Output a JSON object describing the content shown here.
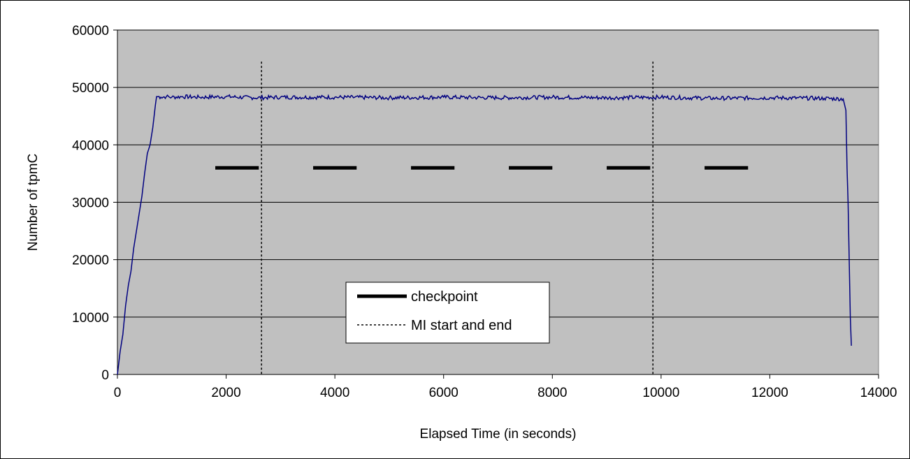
{
  "chart_data": {
    "type": "line",
    "title": "",
    "xlabel": "Elapsed Time (in seconds)",
    "ylabel": "Number of tpmC",
    "xlim": [
      0,
      14000
    ],
    "ylim": [
      0,
      60000
    ],
    "xticks": [
      "0",
      "2000",
      "4000",
      "6000",
      "8000",
      "10000",
      "12000",
      "14000"
    ],
    "yticks": [
      "0",
      "10000",
      "20000",
      "30000",
      "40000",
      "50000",
      "60000"
    ],
    "grid": "horizontal",
    "plot_background": "#c0c0c0",
    "legend_position": "center-left inside plot",
    "series": [
      {
        "name": "",
        "color": "#000080",
        "x": [
          0,
          50,
          100,
          150,
          200,
          250,
          300,
          350,
          400,
          450,
          500,
          550,
          600,
          650,
          700,
          720,
          750,
          800,
          900,
          1000,
          1200,
          1500,
          2000,
          2500,
          3000,
          4000,
          5000,
          6000,
          7000,
          8000,
          9000,
          10000,
          11000,
          12000,
          13000,
          13350,
          13400,
          13420,
          13440,
          13460,
          13480,
          13500
        ],
        "y": [
          0,
          4000,
          7000,
          12000,
          15500,
          18000,
          22000,
          25000,
          28000,
          31000,
          35000,
          38500,
          40000,
          43000,
          47000,
          48400,
          48400,
          48300,
          48400,
          48300,
          48400,
          48300,
          48400,
          48200,
          48300,
          48300,
          48200,
          48300,
          48200,
          48300,
          48200,
          48300,
          48100,
          48200,
          48100,
          48000,
          46000,
          36000,
          30000,
          20000,
          10000,
          5000
        ]
      }
    ],
    "checkpoints": {
      "legend_label": "checkpoint",
      "y": 36000,
      "intervals": [
        [
          1800,
          2600
        ],
        [
          3600,
          4400
        ],
        [
          5400,
          6200
        ],
        [
          7200,
          8000
        ],
        [
          9000,
          9800
        ],
        [
          10800,
          11600
        ]
      ]
    },
    "mi_markers": {
      "legend_label": "MI start and end",
      "x": [
        2650,
        9850
      ],
      "y_top": 54500
    }
  }
}
